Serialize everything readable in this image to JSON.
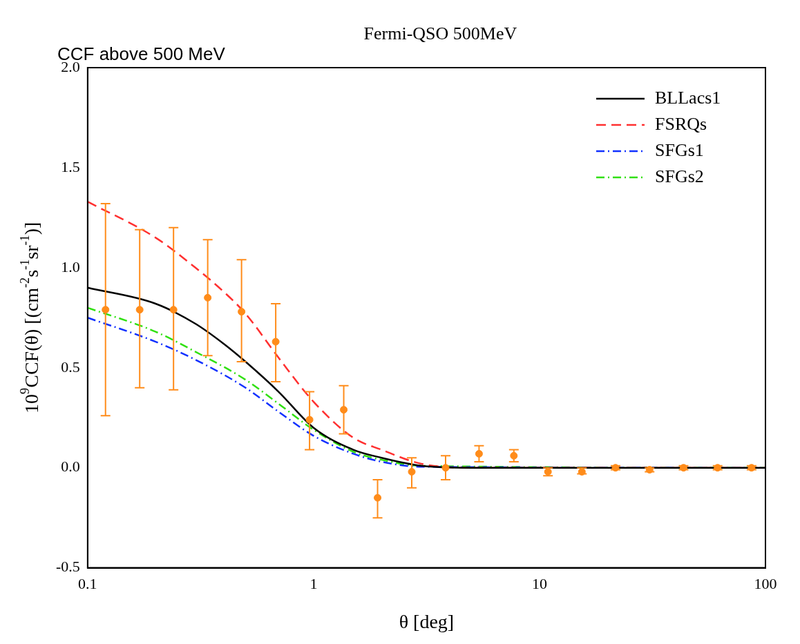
{
  "chart_data": {
    "type": "line",
    "title": "Fermi-QSO 500MeV",
    "xlabel": "θ [deg]",
    "ylabel": "10$^{9}$CCF(θ) [(cm$^{-2}$s$^{-1}$sr$^{-1}$)]",
    "annotations": [
      "CCF above 500 MeV"
    ],
    "log": "x",
    "grid": false,
    "legend": "top right",
    "xlim": [
      0.1,
      100
    ],
    "xticks": [
      0.1,
      1,
      10,
      100
    ],
    "ylim": [
      -0.5,
      2.0
    ],
    "yticks": [
      {
        "value": -0.5,
        "label": "-0.5"
      },
      {
        "value": 0,
        "label": "0.0"
      },
      {
        "value": 0.5,
        "label": "0.5"
      },
      {
        "value": 1.0,
        "label": "1.0"
      },
      {
        "value": 1.5,
        "label": "1.5"
      },
      {
        "value": 2.0,
        "label": "2.0"
      }
    ],
    "series": [
      {
        "name": "BLLacs1",
        "color": "#000000",
        "line_style": "solid",
        "x": [
          0.1,
          0.2,
          0.3,
          0.4,
          0.5,
          0.7,
          1,
          1.5,
          2,
          3,
          5,
          100
        ],
        "values": [
          0.9,
          0.82,
          0.72,
          0.62,
          0.53,
          0.38,
          0.2,
          0.09,
          0.05,
          0.01,
          0,
          0
        ]
      },
      {
        "name": "FSRQs",
        "color": "#ff3030",
        "line_style": "dashed",
        "x": [
          0.1,
          0.2,
          0.3,
          0.4,
          0.5,
          0.7,
          1,
          1.5,
          2,
          3,
          5,
          100
        ],
        "values": [
          1.33,
          1.15,
          1.0,
          0.88,
          0.77,
          0.55,
          0.33,
          0.15,
          0.09,
          0.02,
          0,
          0
        ]
      },
      {
        "name": "SFGs1",
        "color": "#1030ff",
        "line_style": "dashdot",
        "x": [
          0.1,
          0.2,
          0.3,
          0.5,
          0.7,
          1,
          1.5,
          2,
          3,
          100
        ],
        "values": [
          0.75,
          0.63,
          0.54,
          0.4,
          0.28,
          0.16,
          0.07,
          0.03,
          0.005,
          0
        ]
      },
      {
        "name": "SFGs2",
        "color": "#30e010",
        "line_style": "dashdot",
        "x": [
          0.1,
          0.2,
          0.3,
          0.5,
          0.7,
          1,
          1.5,
          2,
          3,
          100
        ],
        "values": [
          0.8,
          0.68,
          0.58,
          0.44,
          0.32,
          0.19,
          0.08,
          0.04,
          0.01,
          0
        ]
      },
      {
        "type": "scatter",
        "color": "#ff8c1a",
        "marker": "circle",
        "x": [
          0.12,
          0.17,
          0.24,
          0.34,
          0.48,
          0.68,
          0.96,
          1.36,
          1.92,
          2.72,
          3.84,
          5.4,
          7.7,
          10.9,
          15.4,
          21.7,
          30.7,
          43.4,
          61.4,
          86.8
        ],
        "values": [
          0.79,
          0.79,
          0.79,
          0.85,
          0.78,
          0.63,
          0.24,
          0.29,
          -0.15,
          -0.02,
          0.0,
          0.07,
          0.06,
          -0.02,
          -0.02,
          0.0,
          -0.01,
          0.0,
          0.0,
          0.0
        ],
        "errors": [
          [
            0.26,
            1.32
          ],
          [
            0.4,
            1.19
          ],
          [
            0.39,
            1.2
          ],
          [
            0.56,
            1.14
          ],
          [
            0.53,
            1.04
          ],
          [
            0.43,
            0.82
          ],
          [
            0.09,
            0.38
          ],
          [
            0.17,
            0.41
          ],
          [
            -0.25,
            -0.06
          ],
          [
            -0.1,
            0.05
          ],
          [
            -0.06,
            0.06
          ],
          [
            0.03,
            0.11
          ],
          [
            0.03,
            0.09
          ],
          [
            -0.04,
            0.0
          ],
          [
            -0.03,
            0.0
          ],
          [
            -0.01,
            0.01
          ],
          [
            -0.02,
            0.0
          ],
          [
            -0.01,
            0.01
          ],
          [
            -0.01,
            0.01
          ],
          [
            -0.01,
            0.01
          ]
        ]
      }
    ]
  }
}
